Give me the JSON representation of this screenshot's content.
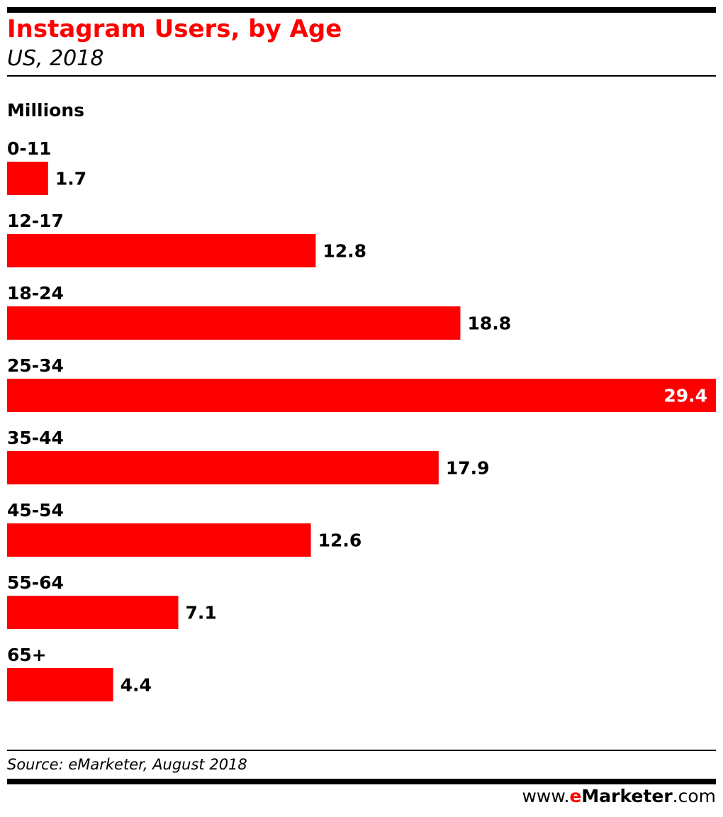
{
  "colors": {
    "accent": "#ff0000",
    "text": "#000000",
    "highlight_text": "#ffffff"
  },
  "header": {
    "title": "Instagram Users, by Age",
    "subtitle": "US, 2018",
    "unit": "Millions"
  },
  "chart_data": {
    "type": "bar",
    "orientation": "horizontal",
    "title": "Instagram Users, by Age",
    "subtitle": "US, 2018",
    "ylabel": "Millions",
    "categories": [
      "0-11",
      "12-17",
      "18-24",
      "25-34",
      "35-44",
      "45-54",
      "55-64",
      "65+"
    ],
    "values": [
      1.7,
      12.8,
      18.8,
      29.4,
      17.9,
      12.6,
      7.1,
      4.4
    ],
    "value_labels": [
      "1.7",
      "12.8",
      "18.8",
      "29.4",
      "17.9",
      "12.6",
      "7.1",
      "4.4"
    ],
    "xlim": [
      0,
      29.4
    ],
    "grid": false,
    "legend": "none",
    "bar_color": "#ff0000"
  },
  "footer": {
    "source": "Source: eMarketer, August 2018",
    "site_prefix": "www.",
    "site_brand_e": "e",
    "site_brand_rest": "Marketer",
    "site_suffix": ".com"
  }
}
